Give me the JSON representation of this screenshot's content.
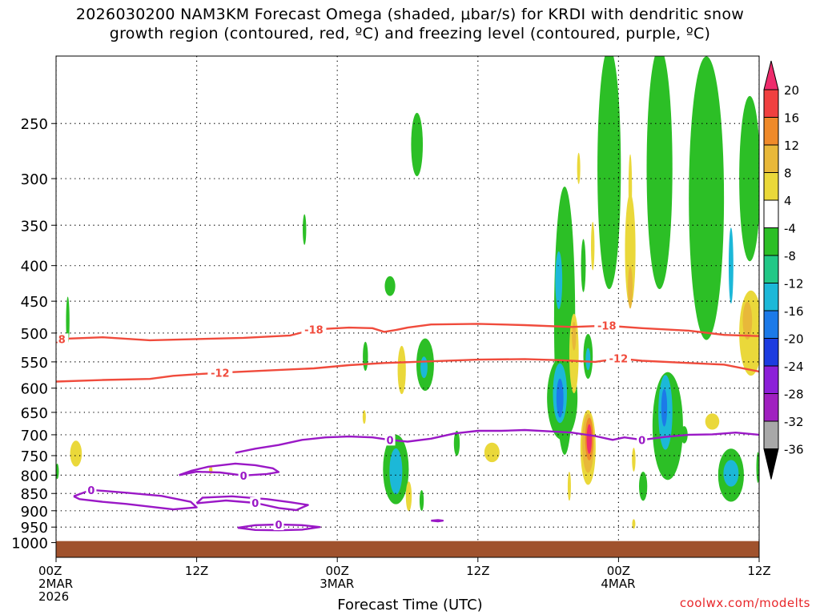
{
  "title_lines": [
    "2026030200 NAM3KM Forecast Omega (shaded, μbar/s) for KRDI with dendritic snow",
    "growth region (contoured, red, ºC) and freezing level (contoured, purple, ºC)"
  ],
  "credit": "coolwx.com/modelts",
  "chart_data": {
    "type": "heatmap",
    "xlabel": "Forecast Time (UTC)",
    "x_range_hours": [
      0,
      60
    ],
    "x_ticks": [
      {
        "hour": 0,
        "lines": [
          "00Z",
          "2MAR",
          "2026"
        ]
      },
      {
        "hour": 12,
        "lines": [
          "12Z"
        ]
      },
      {
        "hour": 24,
        "lines": [
          "00Z",
          "3MAR"
        ]
      },
      {
        "hour": 36,
        "lines": [
          "12Z"
        ]
      },
      {
        "hour": 48,
        "lines": [
          "00Z",
          "4MAR"
        ]
      },
      {
        "hour": 60,
        "lines": [
          "12Z"
        ]
      }
    ],
    "y_axis": {
      "scale": "log-pressure",
      "range_hpa": [
        1050,
        200
      ],
      "tick_labels": [
        "250",
        "300",
        "350",
        "400",
        "450",
        "500",
        "550",
        "600",
        "650",
        "700",
        "750",
        "800",
        "850",
        "900",
        "950",
        "1000"
      ]
    },
    "colorbar": {
      "labels": [
        "20",
        "16",
        "12",
        "8",
        "4",
        "-4",
        "-8",
        "-12",
        "-16",
        "-20",
        "-24",
        "-28",
        "-32",
        "-36"
      ],
      "colors": [
        "#ee2c6c",
        "#f04040",
        "#ef8a2a",
        "#e8b83a",
        "#ead83a",
        "#ffffff",
        "#2cbf26",
        "#22c887",
        "#1cb8d8",
        "#1c7ae8",
        "#1c3ce0",
        "#8c20d8",
        "#a020c0",
        "#a8a8a8",
        "#000000"
      ]
    },
    "ground_color": "#a0522d",
    "ground_top_hpa": 995,
    "contours": {
      "dgz_minus18": {
        "label": "-18",
        "color": "#f04b3c",
        "points": [
          [
            0,
            510
          ],
          [
            4,
            507
          ],
          [
            8,
            512
          ],
          [
            12,
            510
          ],
          [
            16,
            508
          ],
          [
            20,
            504
          ],
          [
            22,
            494
          ],
          [
            25,
            491
          ],
          [
            27,
            492
          ],
          [
            28,
            498
          ],
          [
            29,
            495
          ],
          [
            30,
            491
          ],
          [
            32,
            486
          ],
          [
            36,
            485
          ],
          [
            40,
            487
          ],
          [
            44,
            490
          ],
          [
            47,
            488
          ],
          [
            50,
            492
          ],
          [
            54,
            496
          ],
          [
            57,
            503
          ],
          [
            60,
            505
          ]
        ]
      },
      "dgz_minus12": {
        "label": "-12",
        "color": "#f04b3c",
        "points": [
          [
            0,
            587
          ],
          [
            4,
            584
          ],
          [
            8,
            582
          ],
          [
            10,
            576
          ],
          [
            14,
            570
          ],
          [
            18,
            566
          ],
          [
            22,
            562
          ],
          [
            25,
            556
          ],
          [
            28,
            552
          ],
          [
            32,
            549
          ],
          [
            36,
            546
          ],
          [
            40,
            545
          ],
          [
            43,
            547
          ],
          [
            46,
            550
          ],
          [
            48,
            544
          ],
          [
            50,
            548
          ],
          [
            54,
            552
          ],
          [
            57,
            555
          ],
          [
            60,
            568
          ]
        ]
      },
      "freezing_main": {
        "label": "0",
        "color": "#9a18c6",
        "points": [
          [
            15.3,
            743
          ],
          [
            17,
            733
          ],
          [
            19,
            724
          ],
          [
            21,
            712
          ],
          [
            23,
            706
          ],
          [
            25,
            704
          ],
          [
            27,
            706
          ],
          [
            28.5,
            712
          ],
          [
            30,
            716
          ],
          [
            32,
            709
          ],
          [
            34,
            697
          ],
          [
            36,
            691
          ],
          [
            38,
            691
          ],
          [
            40,
            689
          ],
          [
            42,
            692
          ],
          [
            44,
            695
          ],
          [
            46,
            703
          ],
          [
            47.5,
            712
          ],
          [
            48.5,
            706
          ],
          [
            50,
            712
          ],
          [
            52,
            705
          ],
          [
            54,
            700
          ],
          [
            56,
            699
          ],
          [
            58,
            695
          ],
          [
            60,
            700
          ]
        ]
      },
      "freezing_lobes": [
        {
          "label": "0",
          "color": "#9a18c6",
          "points": [
            [
              1.5,
              858
            ],
            [
              3,
              840
            ],
            [
              6,
              848
            ],
            [
              9,
              857
            ],
            [
              11.5,
              874
            ],
            [
              12,
              890
            ],
            [
              10,
              896
            ],
            [
              8,
              888
            ],
            [
              6,
              880
            ],
            [
              4,
              874
            ],
            [
              2,
              866
            ],
            [
              1.5,
              858
            ]
          ]
        },
        {
          "label": "0",
          "color": "#9a18c6",
          "points": [
            [
              10.5,
              800
            ],
            [
              12,
              791
            ],
            [
              14,
              793
            ],
            [
              16,
              801
            ],
            [
              18,
              797
            ],
            [
              19,
              792
            ],
            [
              18.5,
              782
            ],
            [
              17,
              774
            ],
            [
              15.3,
              770
            ],
            [
              13,
              778
            ],
            [
              11.5,
              789
            ],
            [
              10.5,
              800
            ]
          ]
        },
        {
          "label": "0",
          "color": "#9a18c6",
          "points": [
            [
              12,
              878
            ],
            [
              14.5,
              870
            ],
            [
              17,
              877
            ],
            [
              19,
              892
            ],
            [
              20.5,
              898
            ],
            [
              21.5,
              883
            ],
            [
              20,
              875
            ],
            [
              18,
              866
            ],
            [
              15,
              858
            ],
            [
              12.5,
              862
            ],
            [
              12,
              878
            ]
          ]
        },
        {
          "label": "0",
          "color": "#9a18c6",
          "points": [
            [
              15.5,
              952
            ],
            [
              17,
              944
            ],
            [
              19,
              942
            ],
            [
              21,
              944
            ],
            [
              22.5,
              950
            ],
            [
              21,
              958
            ],
            [
              19,
              960
            ],
            [
              17,
              959
            ],
            [
              15.5,
              952
            ]
          ]
        },
        {
          "label": "0",
          "color": "#9a18c6",
          "points": [
            [
              32,
              930
            ],
            [
              32.6,
              928
            ],
            [
              33,
              930
            ],
            [
              32.6,
              932
            ],
            [
              32,
              930
            ]
          ]
        }
      ]
    },
    "omega_cells": [
      {
        "x": 30.8,
        "p": 268,
        "rx": 0.5,
        "rp": 28,
        "value": -6
      },
      {
        "x": 21.2,
        "p": 355,
        "rx": 0.15,
        "rp": 18,
        "value": -6
      },
      {
        "x": 28.5,
        "p": 428,
        "rx": 0.45,
        "rp": 14,
        "value": -6
      },
      {
        "x": 1.0,
        "p": 480,
        "rx": 0.15,
        "rp": 38,
        "value": -6
      },
      {
        "x": 26.4,
        "p": 540,
        "rx": 0.22,
        "rp": 26,
        "value": -6
      },
      {
        "x": 31.5,
        "p": 555,
        "rx": 0.75,
        "rp": 48,
        "value": -6
      },
      {
        "x": 31.4,
        "p": 560,
        "rx": 0.3,
        "rp": 20,
        "value": -12
      },
      {
        "x": 29.0,
        "p": 785,
        "rx": 1.1,
        "rp": 90,
        "value": -6
      },
      {
        "x": 29.0,
        "p": 790,
        "rx": 0.55,
        "rp": 60,
        "value": -12
      },
      {
        "x": 34.2,
        "p": 720,
        "rx": 0.25,
        "rp": 30,
        "value": -6
      },
      {
        "x": 0.1,
        "p": 790,
        "rx": 0.12,
        "rp": 20,
        "value": -6
      },
      {
        "x": 43.4,
        "p": 480,
        "rx": 0.9,
        "rp": 200,
        "value": -6
      },
      {
        "x": 43.2,
        "p": 620,
        "rx": 1.3,
        "rp": 85,
        "value": -6
      },
      {
        "x": 43.0,
        "p": 610,
        "rx": 0.6,
        "rp": 60,
        "value": -12
      },
      {
        "x": 43.0,
        "p": 620,
        "rx": 0.3,
        "rp": 40,
        "value": -16
      },
      {
        "x": 42.9,
        "p": 420,
        "rx": 0.3,
        "rp": 40,
        "value": -12
      },
      {
        "x": 45.0,
        "p": 400,
        "rx": 0.2,
        "rp": 35,
        "value": -6
      },
      {
        "x": 45.4,
        "p": 540,
        "rx": 0.4,
        "rp": 40,
        "value": -6
      },
      {
        "x": 45.4,
        "p": 545,
        "rx": 0.2,
        "rp": 20,
        "value": -12
      },
      {
        "x": 47.2,
        "p": 290,
        "rx": 1.0,
        "rp": 110,
        "value": -6
      },
      {
        "x": 51.5,
        "p": 290,
        "rx": 1.1,
        "rp": 110,
        "value": -6
      },
      {
        "x": 55.5,
        "p": 320,
        "rx": 1.5,
        "rp": 140,
        "value": -6
      },
      {
        "x": 57.6,
        "p": 400,
        "rx": 0.2,
        "rp": 50,
        "value": -12
      },
      {
        "x": 59.2,
        "p": 300,
        "rx": 0.9,
        "rp": 80,
        "value": -6
      },
      {
        "x": 52.2,
        "p": 680,
        "rx": 1.3,
        "rp": 120,
        "value": -6
      },
      {
        "x": 52.0,
        "p": 650,
        "rx": 0.6,
        "rp": 80,
        "value": -12
      },
      {
        "x": 51.9,
        "p": 640,
        "rx": 0.25,
        "rp": 40,
        "value": -16
      },
      {
        "x": 53.6,
        "p": 700,
        "rx": 0.3,
        "rp": 20,
        "value": -6
      },
      {
        "x": 57.6,
        "p": 800,
        "rx": 1.1,
        "rp": 70,
        "value": -6
      },
      {
        "x": 57.6,
        "p": 795,
        "rx": 0.65,
        "rp": 35,
        "value": -12
      },
      {
        "x": 50.1,
        "p": 830,
        "rx": 0.35,
        "rp": 40,
        "value": -6
      },
      {
        "x": 59.9,
        "p": 780,
        "rx": 0.12,
        "rp": 40,
        "value": -6
      },
      {
        "x": 31.2,
        "p": 870,
        "rx": 0.18,
        "rp": 30,
        "value": -6
      }
    ],
    "omega_pos_cells": [
      {
        "x": 1.7,
        "p": 745,
        "rx": 0.5,
        "rp": 32,
        "value": 6
      },
      {
        "x": 13.2,
        "p": 787,
        "rx": 0.15,
        "rp": 10,
        "value": 6
      },
      {
        "x": 26.3,
        "p": 660,
        "rx": 0.12,
        "rp": 15,
        "value": 6
      },
      {
        "x": 29.5,
        "p": 565,
        "rx": 0.35,
        "rp": 45,
        "value": 6
      },
      {
        "x": 30.1,
        "p": 858,
        "rx": 0.25,
        "rp": 42,
        "value": 6
      },
      {
        "x": 37.2,
        "p": 742,
        "rx": 0.65,
        "rp": 24,
        "value": 6
      },
      {
        "x": 44.2,
        "p": 535,
        "rx": 0.4,
        "rp": 70,
        "value": 6
      },
      {
        "x": 44.2,
        "p": 505,
        "rx": 0.18,
        "rp": 24,
        "value": 10
      },
      {
        "x": 44.6,
        "p": 290,
        "rx": 0.08,
        "rp": 15,
        "value": 6
      },
      {
        "x": 45.4,
        "p": 730,
        "rx": 0.65,
        "rp": 90,
        "value": 6
      },
      {
        "x": 45.4,
        "p": 720,
        "rx": 0.5,
        "rp": 70,
        "value": 10
      },
      {
        "x": 45.5,
        "p": 710,
        "rx": 0.35,
        "rp": 50,
        "value": 15
      },
      {
        "x": 45.5,
        "p": 710,
        "rx": 0.22,
        "rp": 35,
        "value": 20
      },
      {
        "x": 43.8,
        "p": 830,
        "rx": 0.12,
        "rp": 40,
        "value": 6
      },
      {
        "x": 45.8,
        "p": 375,
        "rx": 0.15,
        "rp": 30,
        "value": 6
      },
      {
        "x": 49.0,
        "p": 380,
        "rx": 0.45,
        "rp": 70,
        "value": 6
      },
      {
        "x": 49.0,
        "p": 430,
        "rx": 0.2,
        "rp": 30,
        "value": 10
      },
      {
        "x": 49.0,
        "p": 310,
        "rx": 0.15,
        "rp": 35,
        "value": 6
      },
      {
        "x": 49.3,
        "p": 760,
        "rx": 0.15,
        "rp": 30,
        "value": 6
      },
      {
        "x": 49.3,
        "p": 940,
        "rx": 0.12,
        "rp": 15,
        "value": 6
      },
      {
        "x": 56.0,
        "p": 670,
        "rx": 0.6,
        "rp": 18,
        "value": 6
      },
      {
        "x": 59.3,
        "p": 500,
        "rx": 1.0,
        "rp": 70,
        "value": 6
      },
      {
        "x": 59.0,
        "p": 480,
        "rx": 0.4,
        "rp": 30,
        "value": 10
      }
    ]
  }
}
